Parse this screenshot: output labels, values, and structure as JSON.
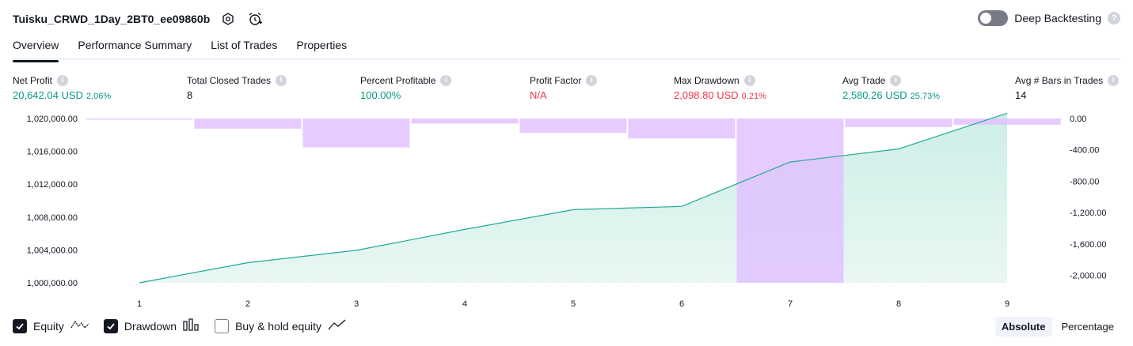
{
  "header": {
    "strategy_name": "Tuisku_CRWD_1Day_2BT0_ee09860b",
    "deep_backtesting_label": "Deep Backtesting",
    "help_glyph": "?"
  },
  "tabs": [
    {
      "label": "Overview",
      "active": true
    },
    {
      "label": "Performance Summary",
      "active": false
    },
    {
      "label": "List of Trades",
      "active": false
    },
    {
      "label": "Properties",
      "active": false
    }
  ],
  "metrics": [
    {
      "label": "Net Profit",
      "value": "20,642.04 USD",
      "pct": "2.06%",
      "color": "green"
    },
    {
      "label": "Total Closed Trades",
      "value": "8",
      "pct": "",
      "color": "plain"
    },
    {
      "label": "Percent Profitable",
      "value": "100.00%",
      "pct": "",
      "color": "green"
    },
    {
      "label": "Profit Factor",
      "value": "N/A",
      "pct": "",
      "color": "red"
    },
    {
      "label": "Max Drawdown",
      "value": "2,098.80 USD",
      "pct": "0.21%",
      "color": "red"
    },
    {
      "label": "Avg Trade",
      "value": "2,580.26 USD",
      "pct": "25.73%",
      "color": "green"
    },
    {
      "label": "Avg # Bars in Trades",
      "value": "14",
      "pct": "",
      "color": "plain"
    }
  ],
  "colors": {
    "equity_line": "#22ab94",
    "equity_fill": "#cdeee6",
    "drawdown_fill": "#e1c2ff",
    "axis_text": "#131722"
  },
  "chart_data": {
    "type": "line+bar",
    "x": [
      1,
      2,
      3,
      4,
      5,
      6,
      7,
      8,
      9
    ],
    "series": [
      {
        "name": "Equity",
        "kind": "area",
        "axis": "left",
        "values": [
          1000000.0,
          1002450.0,
          1003950.0,
          1006500.0,
          1008900.0,
          1009300.0,
          1014700.0,
          1016300.0,
          1020642.04
        ]
      },
      {
        "name": "Drawdown",
        "kind": "bar",
        "axis": "right",
        "values": [
          -10,
          -130,
          -370,
          -65,
          -185,
          -255,
          -2098.8,
          -110,
          -80
        ]
      }
    ],
    "left_ticks": [
      "1,020,000.00",
      "1,016,000.00",
      "1,012,000.00",
      "1,008,000.00",
      "1,004,000.00",
      "1,000,000.00"
    ],
    "right_ticks": [
      "0.00",
      "-400.00",
      "-800.00",
      "-1,200.00",
      "-1,600.00",
      "-2,000.00"
    ],
    "left_range": [
      1000000,
      1020000
    ],
    "right_range": [
      -2098.8,
      0
    ],
    "x_tick_labels": [
      "1",
      "2",
      "3",
      "4",
      "5",
      "6",
      "7",
      "8",
      "9"
    ]
  },
  "legend": {
    "equity_label": "Equity",
    "drawdown_label": "Drawdown",
    "buyhold_label": "Buy & hold equity",
    "equity_checked": true,
    "drawdown_checked": true,
    "buyhold_checked": false
  },
  "mode": {
    "absolute_label": "Absolute",
    "percentage_label": "Percentage",
    "active": "Absolute"
  }
}
